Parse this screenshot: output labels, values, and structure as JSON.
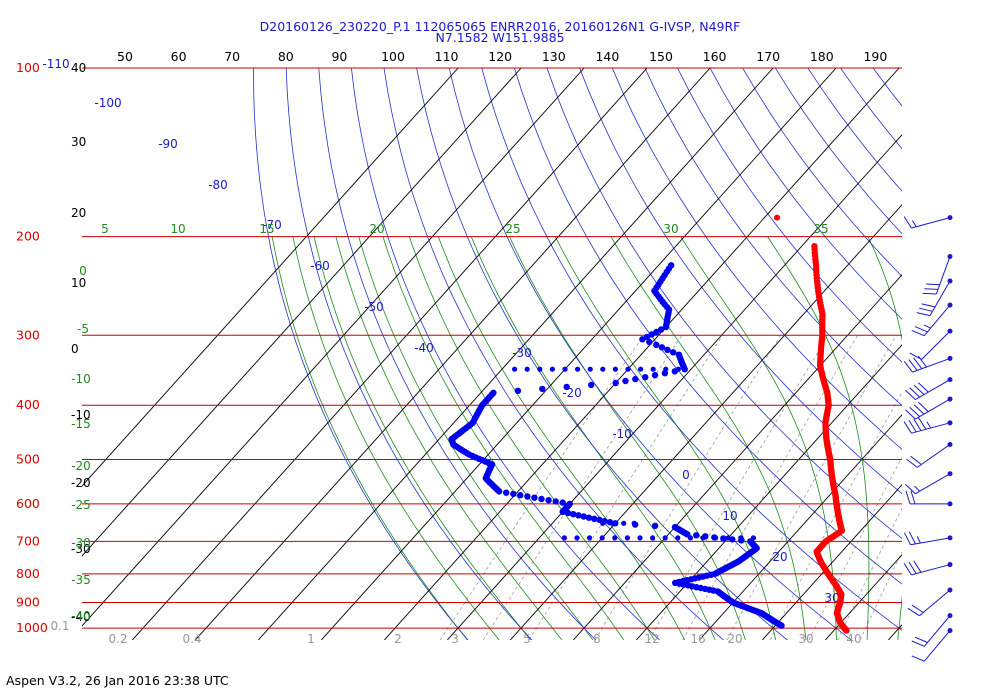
{
  "header": {
    "line1": "D20160126_230220_P.1 112065065 ENRR2016, 20160126N1 G-IVSP, N49RF",
    "line2": "N7.1582 W151.9885"
  },
  "footer": {
    "version": "Aspen V3.2, 26 Jan 2016  23:38 UTC"
  },
  "colors": {
    "temperature": "#ff0000",
    "dewpoint": "#0000ee",
    "isobar": "#cc0000",
    "isotherm": "#000000",
    "dry_adiabat": "#2233cc",
    "moist_adiabat": "#1a8c1a",
    "mixing_ratio": "#9a9a9a",
    "wind": "#1a1acc"
  },
  "chart_data": {
    "type": "skew-t",
    "pressure_axis": {
      "labels": [
        "100",
        "200",
        "300",
        "400",
        "500",
        "600",
        "700",
        "800",
        "900",
        "1000"
      ],
      "values": [
        100,
        200,
        300,
        400,
        500,
        600,
        700,
        800,
        900,
        1000
      ],
      "unit": "hPa"
    },
    "top_axis_labels": [
      "50",
      "60",
      "70",
      "80",
      "90",
      "100",
      "110",
      "120",
      "130",
      "140",
      "150",
      "160",
      "170",
      "180",
      "190"
    ],
    "isotherm_labels": [
      "40",
      "30",
      "20",
      "10",
      "0",
      "-10",
      "-20",
      "-30",
      "-40"
    ],
    "dry_adiabat_labels": [
      "-110",
      "-100",
      "-90",
      "-80",
      "-70",
      "-60",
      "-50",
      "-40",
      "-30",
      "-20",
      "-10",
      "0",
      "10",
      "20",
      "30"
    ],
    "moist_adiabat_labels": [
      "5",
      "10",
      "15",
      "20",
      "25",
      "30",
      "35",
      "0",
      "-5",
      "-10",
      "-15",
      "-20",
      "-25",
      "-30",
      "-35",
      "-40"
    ],
    "mixing_ratio_labels": [
      "0.1",
      "0.2",
      "0.4",
      "1",
      "2",
      "3",
      "5",
      "8",
      "12",
      "16",
      "20",
      "30",
      "40"
    ],
    "temperature_profile": [
      [
        208,
        -38
      ],
      [
        225,
        -35
      ],
      [
        250,
        -31
      ],
      [
        275,
        -27
      ],
      [
        300,
        -24
      ],
      [
        320,
        -22
      ],
      [
        340,
        -20
      ],
      [
        360,
        -17.5
      ],
      [
        380,
        -15
      ],
      [
        400,
        -13
      ],
      [
        430,
        -11
      ],
      [
        460,
        -8.5
      ],
      [
        500,
        -5
      ],
      [
        540,
        -2
      ],
      [
        580,
        1
      ],
      [
        610,
        3
      ],
      [
        640,
        5
      ],
      [
        670,
        7
      ],
      [
        700,
        6
      ],
      [
        730,
        6
      ],
      [
        760,
        8
      ],
      [
        800,
        11
      ],
      [
        840,
        14
      ],
      [
        870,
        16
      ],
      [
        900,
        17
      ],
      [
        940,
        18
      ],
      [
        980,
        20
      ],
      [
        1010,
        22
      ]
    ],
    "dewpoint_profile": [
      [
        225,
        -58
      ],
      [
        250,
        -57
      ],
      [
        270,
        -52
      ],
      [
        290,
        -50
      ],
      [
        305,
        -52
      ],
      [
        312,
        -49
      ],
      [
        325,
        -44
      ],
      [
        345,
        -41
      ],
      [
        365,
        -50
      ],
      [
        380,
        -68
      ],
      [
        400,
        -68
      ],
      [
        430,
        -67
      ],
      [
        460,
        -68
      ],
      [
        470,
        -67
      ],
      [
        490,
        -63
      ],
      [
        510,
        -58
      ],
      [
        540,
        -57
      ],
      [
        570,
        -53
      ],
      [
        600,
        -40
      ],
      [
        620,
        -40
      ],
      [
        650,
        -30
      ],
      [
        660,
        -20
      ],
      [
        680,
        -17
      ],
      [
        700,
        -6
      ],
      [
        720,
        -4
      ],
      [
        760,
        -5
      ],
      [
        800,
        -7
      ],
      [
        830,
        -12
      ],
      [
        860,
        -4
      ],
      [
        900,
        0
      ],
      [
        940,
        6
      ],
      [
        990,
        11
      ]
    ],
    "dewpoint_dropouts": [
      {
        "p": 345,
        "from": -68,
        "to": -42
      },
      {
        "p": 650,
        "from": -32,
        "to": -27
      },
      {
        "p": 690,
        "from": -36,
        "to": -6
      }
    ],
    "isolated_point": {
      "p": 185,
      "t": -48
    },
    "wind_barbs": [
      {
        "p": 185,
        "dir": 255,
        "spd": 15
      },
      {
        "p": 217,
        "dir": 200,
        "spd": 30
      },
      {
        "p": 240,
        "dir": 210,
        "spd": 30
      },
      {
        "p": 265,
        "dir": 220,
        "spd": 25
      },
      {
        "p": 295,
        "dir": 225,
        "spd": 10
      },
      {
        "p": 330,
        "dir": 250,
        "spd": 40
      },
      {
        "p": 360,
        "dir": 240,
        "spd": 40
      },
      {
        "p": 390,
        "dir": 240,
        "spd": 40
      },
      {
        "p": 430,
        "dir": 255,
        "spd": 45
      },
      {
        "p": 470,
        "dir": 235,
        "spd": 20
      },
      {
        "p": 530,
        "dir": 240,
        "spd": 15
      },
      {
        "p": 600,
        "dir": 270,
        "spd": 20
      },
      {
        "p": 690,
        "dir": 260,
        "spd": 25
      },
      {
        "p": 770,
        "dir": 255,
        "spd": 30
      },
      {
        "p": 855,
        "dir": 230,
        "spd": 20
      },
      {
        "p": 950,
        "dir": 220,
        "spd": 20
      },
      {
        "p": 1010,
        "dir": 220,
        "spd": 10
      }
    ]
  }
}
